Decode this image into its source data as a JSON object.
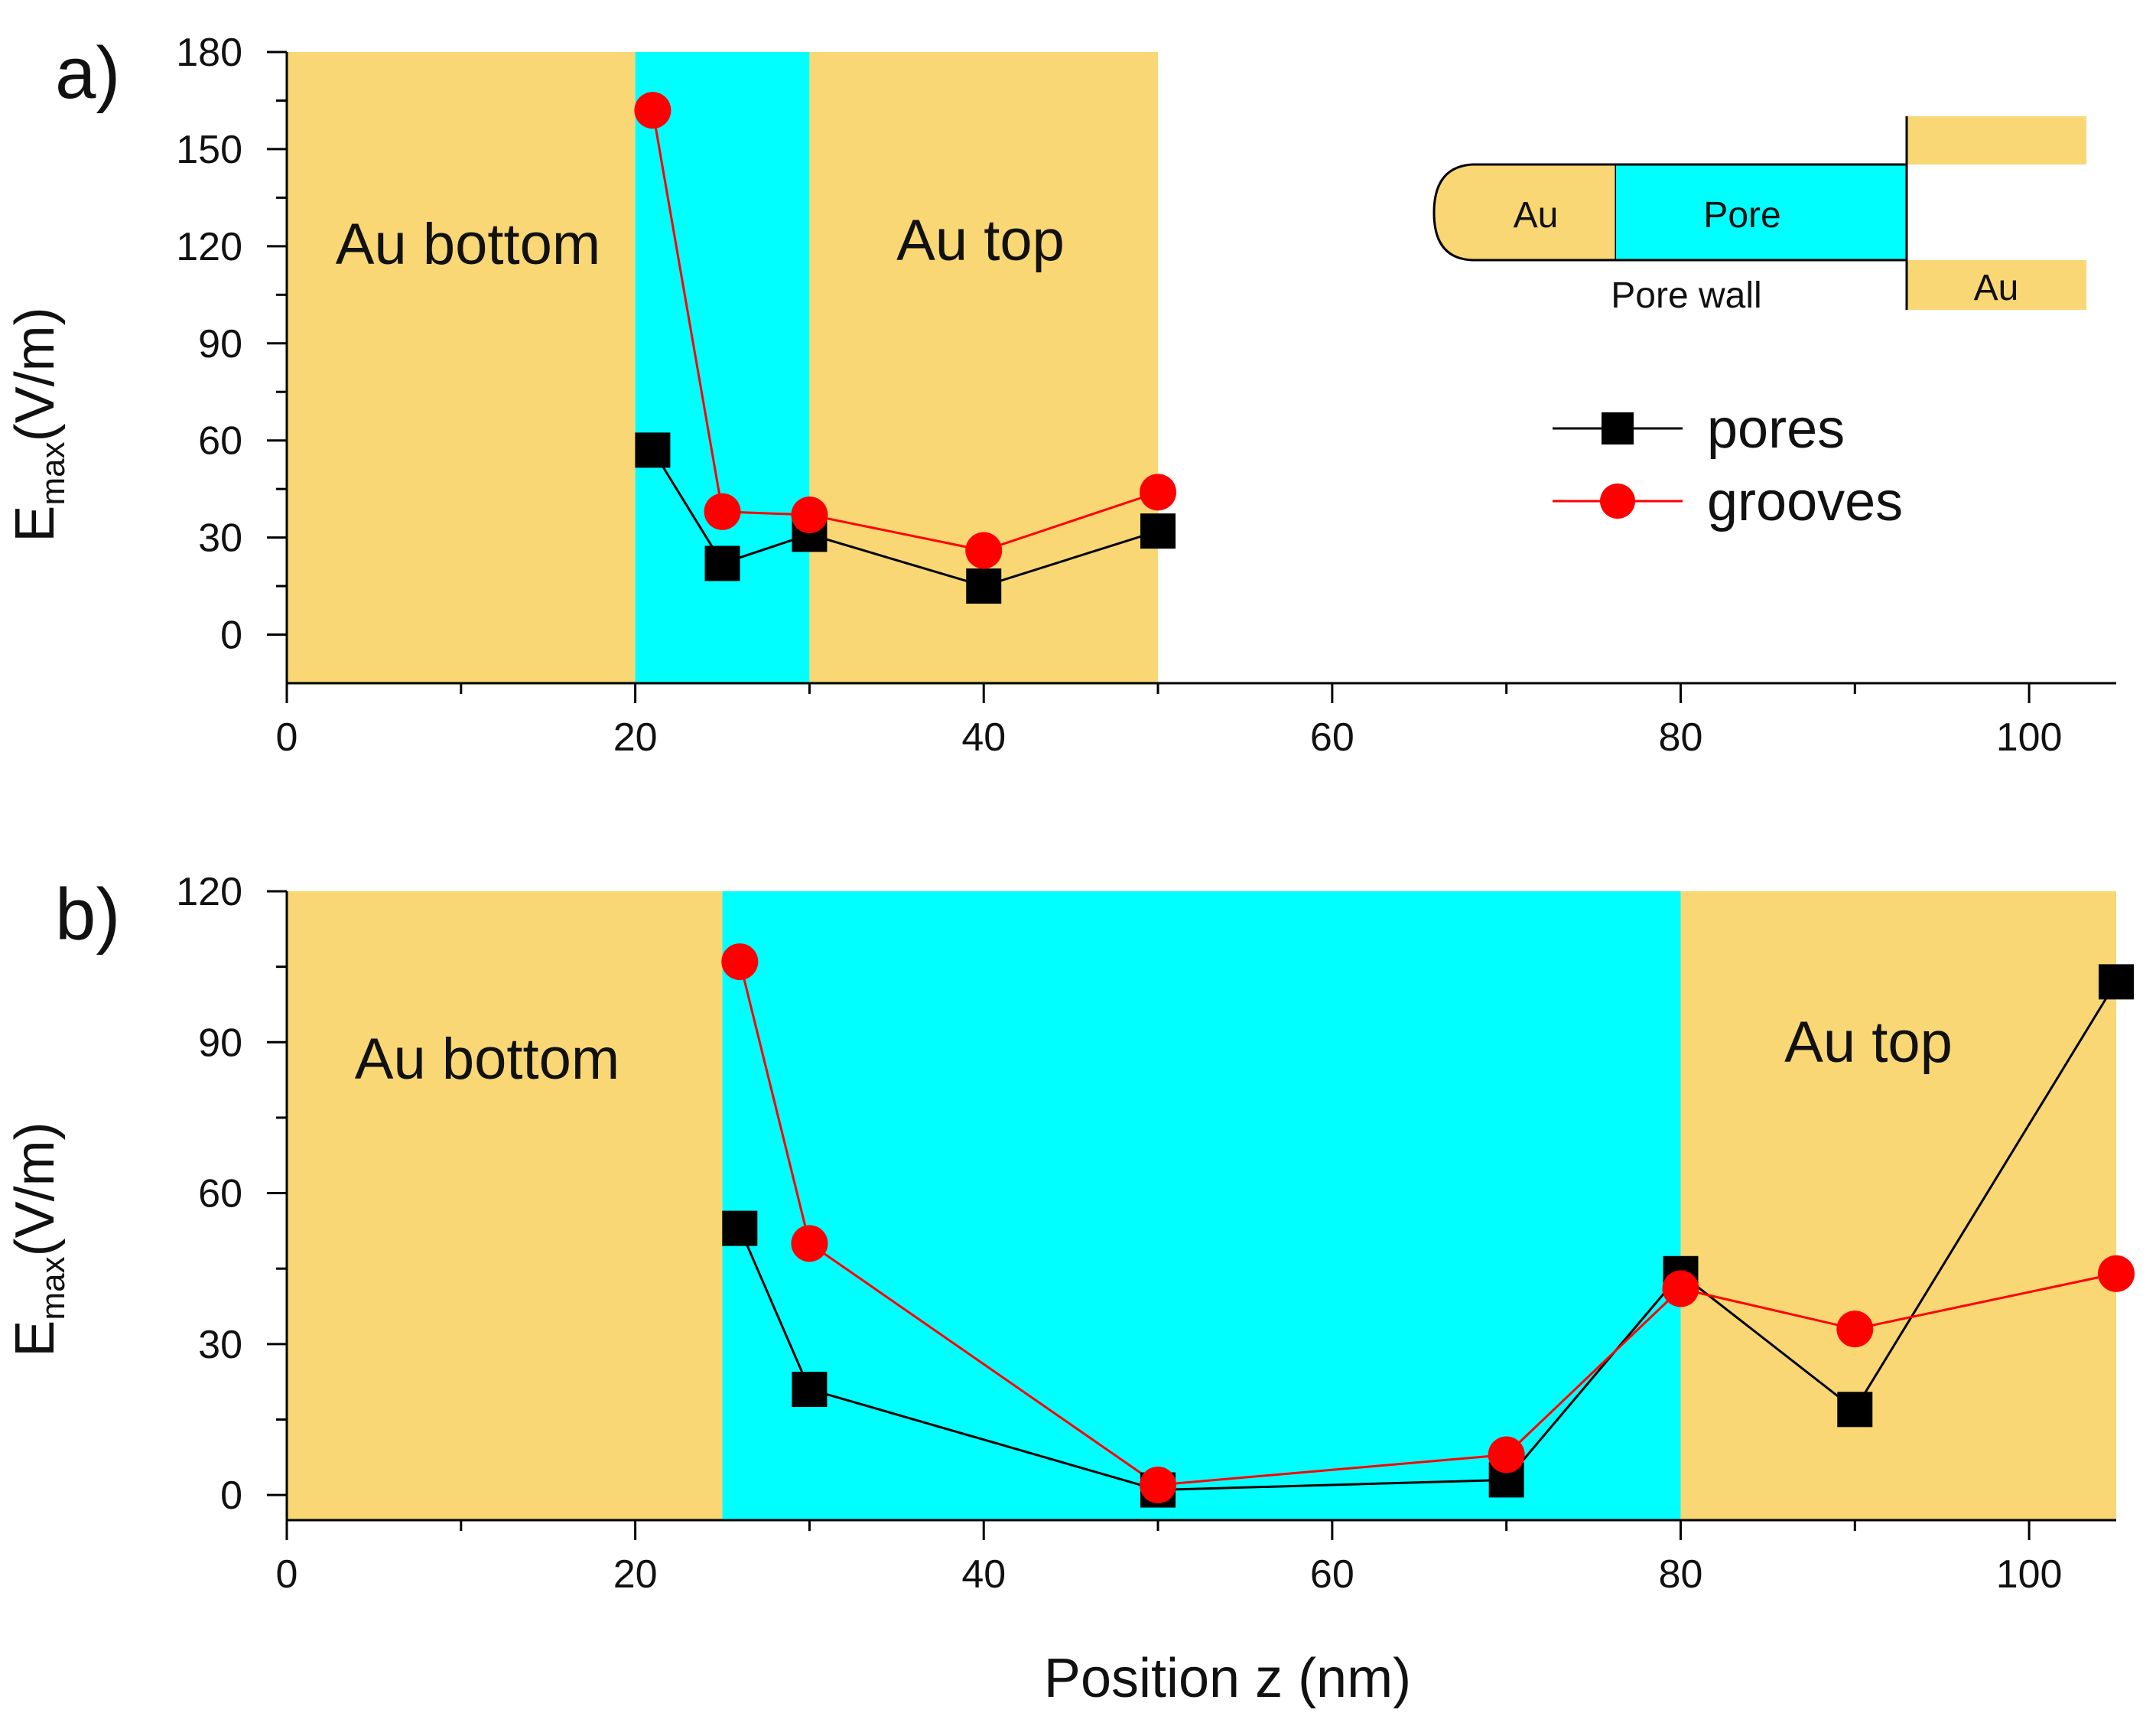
{
  "figure_title": "",
  "colors": {
    "gold": "#F9D775",
    "cyan": "#00FFFF",
    "pores": "#000000",
    "grooves": "#FF0000",
    "grooves_line": "#FF0000",
    "axis": "#000000"
  },
  "chart_data": [
    {
      "panel": "a)",
      "type": "line",
      "xlabel": "",
      "ylabel": "E",
      "ylabel_sub": "max",
      "ylabel_unit": "(V/m)",
      "xlim": [
        0,
        105
      ],
      "ylim": [
        -15,
        180
      ],
      "x_ticks": [
        0,
        20,
        40,
        60,
        80,
        100
      ],
      "y_ticks": [
        0,
        30,
        60,
        90,
        120,
        150,
        180
      ],
      "regions": [
        {
          "name": "Au bottom",
          "x0": 0,
          "x1": 20,
          "color": "gold"
        },
        {
          "name": "",
          "x0": 20,
          "x1": 30,
          "color": "cyan"
        },
        {
          "name": "Au top",
          "x0": 30,
          "x1": 50,
          "color": "gold"
        }
      ],
      "series": [
        {
          "name": "pores",
          "marker": "square",
          "x": [
            21,
            25,
            30,
            40,
            50
          ],
          "values": [
            57,
            22,
            31,
            15,
            32
          ]
        },
        {
          "name": "grooves",
          "marker": "circle",
          "x": [
            21,
            25,
            30,
            40,
            50
          ],
          "values": [
            162,
            38,
            37,
            26,
            44
          ]
        }
      ],
      "legend": {
        "position": "right",
        "entries": [
          "pores",
          "grooves"
        ]
      },
      "schematic": {
        "au_left": "Au",
        "pore": "Pore",
        "pore_wall": "Pore wall",
        "au_right": "Au"
      }
    },
    {
      "panel": "b)",
      "type": "line",
      "xlabel": "Position z (nm)",
      "ylabel": "E",
      "ylabel_sub": "max",
      "ylabel_unit": "(V/m)",
      "xlim": [
        0,
        105
      ],
      "ylim": [
        -5,
        120
      ],
      "x_ticks": [
        0,
        20,
        40,
        60,
        80,
        100
      ],
      "y_ticks": [
        0,
        30,
        60,
        90,
        120
      ],
      "regions": [
        {
          "name": "Au bottom",
          "x0": 0,
          "x1": 25,
          "color": "gold"
        },
        {
          "name": "",
          "x0": 25,
          "x1": 80,
          "color": "cyan"
        },
        {
          "name": "Au top",
          "x0": 80,
          "x1": 105,
          "color": "gold"
        }
      ],
      "series": [
        {
          "name": "pores",
          "marker": "square",
          "x": [
            26,
            30,
            50,
            70,
            80,
            90,
            105
          ],
          "values": [
            53,
            21,
            1,
            3,
            44,
            17,
            102
          ]
        },
        {
          "name": "grooves",
          "marker": "circle",
          "x": [
            26,
            30,
            50,
            70,
            80,
            90,
            105
          ],
          "values": [
            106,
            50,
            2,
            8,
            41,
            33,
            44
          ]
        }
      ]
    }
  ]
}
